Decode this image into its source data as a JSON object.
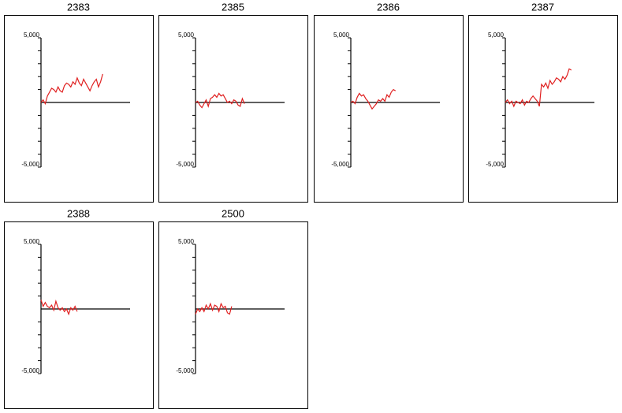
{
  "chart_data": [
    {
      "type": "line",
      "title": "2383",
      "color": "#e02020",
      "ylim": [
        -5000,
        5000
      ],
      "yticks": [
        {
          "value": -5000,
          "label": "-5,000"
        },
        {
          "value": 5000,
          "label": "5,000"
        }
      ],
      "minor_yticks": [
        -4000,
        -3000,
        -2000,
        -1000,
        1000,
        2000,
        3000,
        4000
      ],
      "values": [
        0,
        200,
        -100,
        500,
        800,
        1100,
        1000,
        800,
        1200,
        900,
        800,
        1300,
        1500,
        1400,
        1200,
        1600,
        1400,
        1900,
        1500,
        1300,
        1800,
        1500,
        1200,
        900,
        1300,
        1600,
        1800,
        1200,
        1600,
        2200
      ]
    },
    {
      "type": "line",
      "title": "2385",
      "color": "#e02020",
      "ylim": [
        -5000,
        5000
      ],
      "yticks": [
        {
          "value": -5000,
          "label": "-5,000"
        },
        {
          "value": 5000,
          "label": "5,000"
        }
      ],
      "minor_yticks": [
        -4000,
        -3000,
        -2000,
        -1000,
        1000,
        2000,
        3000,
        4000
      ],
      "values": [
        0,
        100,
        -200,
        -400,
        -100,
        200,
        -300,
        300,
        400,
        600,
        400,
        700,
        500,
        600,
        300,
        0,
        100,
        -100,
        200,
        100,
        -200,
        -300,
        300,
        -100
      ]
    },
    {
      "type": "line",
      "title": "2386",
      "color": "#e02020",
      "ylim": [
        -5000,
        5000
      ],
      "yticks": [
        {
          "value": -5000,
          "label": "-5,000"
        },
        {
          "value": 5000,
          "label": "5,000"
        }
      ],
      "minor_yticks": [
        -4000,
        -3000,
        -2000,
        -1000,
        1000,
        2000,
        3000,
        4000
      ],
      "values": [
        0,
        100,
        -100,
        400,
        700,
        500,
        600,
        300,
        100,
        -200,
        -500,
        -300,
        -100,
        200,
        100,
        300,
        100,
        600,
        400,
        800,
        1000,
        900
      ]
    },
    {
      "type": "line",
      "title": "2387",
      "color": "#e02020",
      "ylim": [
        -5000,
        5000
      ],
      "yticks": [
        {
          "value": -5000,
          "label": "-5,000"
        },
        {
          "value": 5000,
          "label": "5,000"
        }
      ],
      "minor_yticks": [
        -4000,
        -3000,
        -2000,
        -1000,
        1000,
        2000,
        3000,
        4000
      ],
      "values": [
        0,
        200,
        -100,
        100,
        -300,
        100,
        0,
        -100,
        200,
        -200,
        100,
        0,
        300,
        500,
        300,
        100,
        -300,
        1400,
        1200,
        1500,
        1100,
        1700,
        1400,
        1600,
        1900,
        1800,
        1600,
        2000,
        1800,
        2100,
        2600,
        2500
      ]
    },
    {
      "type": "line",
      "title": "2388",
      "color": "#e02020",
      "ylim": [
        -5000,
        5000
      ],
      "yticks": [
        {
          "value": -5000,
          "label": "-5,000"
        },
        {
          "value": 5000,
          "label": "5,000"
        }
      ],
      "minor_yticks": [
        -4000,
        -3000,
        -2000,
        -1000,
        1000,
        2000,
        3000,
        4000
      ],
      "values": [
        700,
        200,
        500,
        200,
        100,
        300,
        -100,
        600,
        100,
        -100,
        100,
        -200,
        0,
        -400,
        100,
        -100,
        200,
        -200
      ]
    },
    {
      "type": "line",
      "title": "2500",
      "color": "#e02020",
      "ylim": [
        -5000,
        5000
      ],
      "yticks": [
        {
          "value": -5000,
          "label": "-5,000"
        },
        {
          "value": 5000,
          "label": "5,000"
        }
      ],
      "minor_yticks": [
        -4000,
        -3000,
        -2000,
        -1000,
        1000,
        2000,
        3000,
        4000
      ],
      "values": [
        -400,
        0,
        -200,
        100,
        -200,
        300,
        0,
        400,
        -100,
        300,
        200,
        -200,
        400,
        100,
        200,
        -300,
        -400,
        200
      ]
    }
  ]
}
